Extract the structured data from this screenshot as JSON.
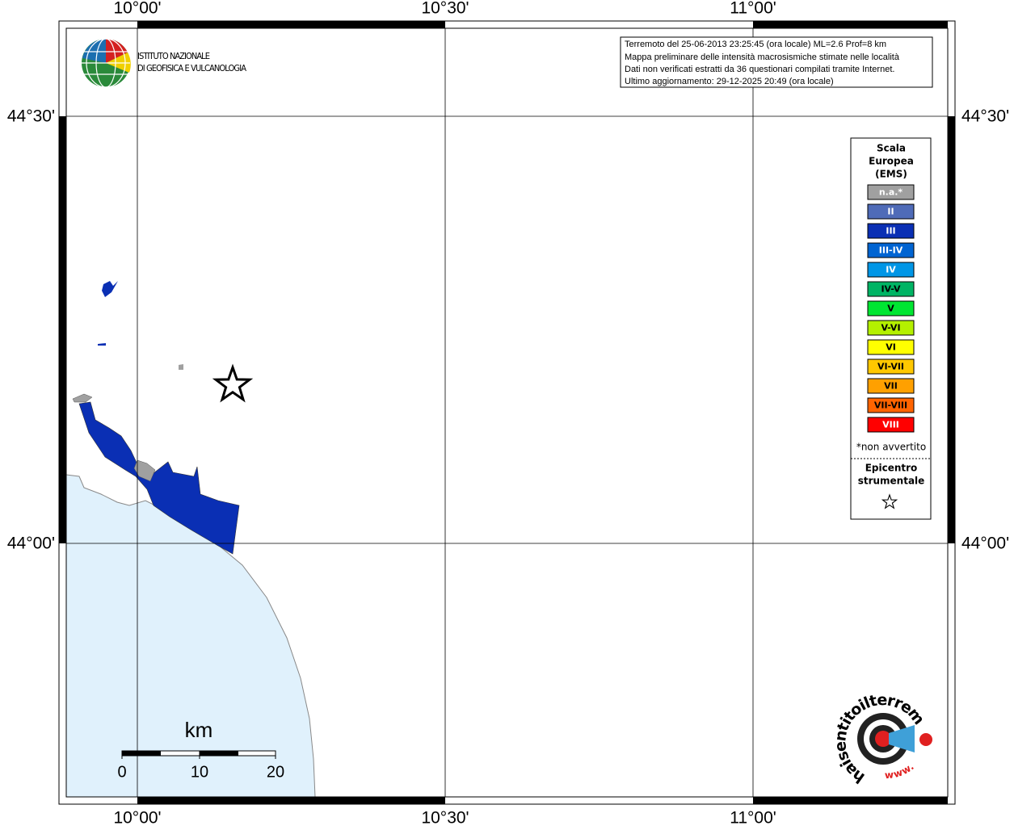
{
  "graticule": {
    "top": [
      "10°00'",
      "10°30'",
      "11°00'"
    ],
    "bottom": [
      "10°00'",
      "10°30'",
      "11°00'"
    ],
    "left": [
      "44°30'",
      "44°00'"
    ],
    "right": [
      "44°30'",
      "44°00'"
    ]
  },
  "institute": [
    "ISTITUTO NAZIONALE",
    "DI GEOFISICA E VULCANOLOGIA"
  ],
  "info": [
    "Terremoto del 25-06-2013 23:25:45 (ora locale) ML=2.6 Prof=8 km",
    "Mappa preliminare delle intensità macrosismiche stimate nelle località",
    "Dati non verificati estratti da 36 questionari compilati tramite Internet.",
    "Ultimo aggiornamento: 29-12-2025 20:49 (ora locale)"
  ],
  "legend": {
    "title": [
      "Scala",
      "Europea",
      "(EMS)"
    ],
    "classes": [
      {
        "label": "n.a.*",
        "color": "#a0a0a0",
        "text": "#ffffff"
      },
      {
        "label": "II",
        "color": "#4f6bb8",
        "text": "#ffffff"
      },
      {
        "label": "III",
        "color": "#0a2fb4",
        "text": "#ffffff"
      },
      {
        "label": "III-IV",
        "color": "#0064d2",
        "text": "#ffffff"
      },
      {
        "label": "IV",
        "color": "#0096e6",
        "text": "#ffffff"
      },
      {
        "label": "IV-V",
        "color": "#00b464",
        "text": "#000000"
      },
      {
        "label": "V",
        "color": "#00e632",
        "text": "#000000"
      },
      {
        "label": "V-VI",
        "color": "#b4f000",
        "text": "#000000"
      },
      {
        "label": "VI",
        "color": "#ffff00",
        "text": "#000000"
      },
      {
        "label": "VI-VII",
        "color": "#ffc800",
        "text": "#000000"
      },
      {
        "label": "VII",
        "color": "#ffa000",
        "text": "#000000"
      },
      {
        "label": "VII-VIII",
        "color": "#ff6400",
        "text": "#000000"
      },
      {
        "label": "VIII",
        "color": "#ff0000",
        "text": "#ffffff"
      }
    ],
    "note": "*non avvertito",
    "epicenter": [
      "Epicentro",
      "strumentale"
    ]
  },
  "scale_bar": {
    "unit": "km",
    "ticks": [
      "0",
      "10",
      "20"
    ]
  },
  "site_logo": {
    "name": "haisentitoilterremoto.it",
    "www": "www."
  }
}
